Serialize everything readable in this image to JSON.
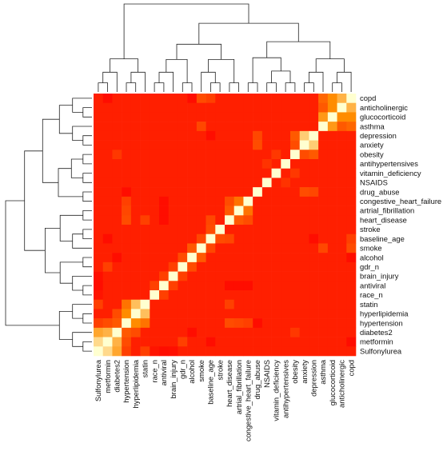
{
  "chart_data": {
    "type": "heatmap",
    "title": "",
    "xlabel": "",
    "ylabel": "",
    "legend": "none",
    "color_scale": {
      "low": "#ff0000",
      "mid": "#ff8c00",
      "high": "#ffffd0"
    },
    "row_labels": [
      "copd",
      "anticholinergic",
      "glucocorticoid",
      "asthma",
      "depression",
      "anxiety",
      "obesity",
      "antihypertensives",
      "vitamin_deficiency",
      "NSAIDS",
      "drug_abuse",
      "congestive_heart_failure",
      "artrial_fibrillation",
      "heart_disease",
      "stroke",
      "baseline_age",
      "smoke",
      "alcohol",
      "gdr_n",
      "brain_injury",
      "antiviral",
      "race_n",
      "statin",
      "hyperlipidemia",
      "hypertension",
      "diabetes2",
      "metformin",
      "Sulfonylurea"
    ],
    "column_labels": [
      "Sulfonylurea",
      "metformin",
      "diabetes2",
      "hypertension",
      "hyperlipidemia",
      "statin",
      "race_n",
      "antiviral",
      "brain_injury",
      "gdr_n",
      "alcohol",
      "smoke",
      "baseline_age",
      "stroke",
      "heart_disease",
      "artrial_fibrillation",
      "congestive_heart_failure",
      "drug_abuse",
      "NSAIDS",
      "vitamin_deficiency",
      "antihypertensives",
      "obesity",
      "anxiety",
      "depression",
      "asthma",
      "glucocorticoid",
      "anticholinergic",
      "copd"
    ],
    "diagonal_value": 1.0,
    "values_note": "approximate relative similarity 0 (red) to 1 (pale yellow)",
    "cells": [
      {
        "a": "Sulfonylurea",
        "b": "metformin",
        "v": 0.85
      },
      {
        "a": "Sulfonylurea",
        "b": "diabetes2",
        "v": 0.65
      },
      {
        "a": "metformin",
        "b": "diabetes2",
        "v": 0.7
      },
      {
        "a": "Sulfonylurea",
        "b": "hypertension",
        "v": 0.25
      },
      {
        "a": "metformin",
        "b": "hypertension",
        "v": 0.3
      },
      {
        "a": "diabetes2",
        "b": "hypertension",
        "v": 0.35
      },
      {
        "a": "diabetes2",
        "b": "hyperlipidemia",
        "v": 0.3
      },
      {
        "a": "hypertension",
        "b": "hyperlipidemia",
        "v": 0.55
      },
      {
        "a": "hypertension",
        "b": "statin",
        "v": 0.45
      },
      {
        "a": "hyperlipidemia",
        "b": "statin",
        "v": 0.75
      },
      {
        "a": "Sulfonylurea",
        "b": "statin",
        "v": 0.25
      },
      {
        "a": "copd",
        "b": "anticholinergic",
        "v": 0.7
      },
      {
        "a": "copd",
        "b": "glucocorticoid",
        "v": 0.55
      },
      {
        "a": "copd",
        "b": "asthma",
        "v": 0.4
      },
      {
        "a": "anticholinergic",
        "b": "glucocorticoid",
        "v": 0.55
      },
      {
        "a": "glucocorticoid",
        "b": "asthma",
        "v": 0.6
      },
      {
        "a": "anticholinergic",
        "b": "asthma",
        "v": 0.35
      },
      {
        "a": "depression",
        "b": "anxiety",
        "v": 0.8
      },
      {
        "a": "depression",
        "b": "obesity",
        "v": 0.35
      },
      {
        "a": "anxiety",
        "b": "obesity",
        "v": 0.3
      },
      {
        "a": "congestive_heart_failure",
        "b": "artrial_fibrillation",
        "v": 0.45
      },
      {
        "a": "congestive_heart_failure",
        "b": "heart_disease",
        "v": 0.3
      },
      {
        "a": "artrial_fibrillation",
        "b": "heart_disease",
        "v": 0.35
      },
      {
        "a": "hypertension",
        "b": "heart_disease",
        "v": 0.3
      },
      {
        "a": "hypertension",
        "b": "artrial_fibrillation",
        "v": 0.28
      },
      {
        "a": "hypertension",
        "b": "congestive_heart_failure",
        "v": 0.25
      },
      {
        "a": "stroke",
        "b": "baseline_age",
        "v": 0.3
      },
      {
        "a": "baseline_age",
        "b": "smoke",
        "v": 0.28
      },
      {
        "a": "smoke",
        "b": "alcohol",
        "v": 0.35
      },
      {
        "a": "alcohol",
        "b": "gdr_n",
        "v": 0.3
      },
      {
        "a": "gdr_n",
        "b": "brain_injury",
        "v": 0.25
      },
      {
        "a": "brain_injury",
        "b": "antiviral",
        "v": 0.25
      },
      {
        "a": "antiviral",
        "b": "race_n",
        "v": 0.25
      },
      {
        "a": "heart_disease",
        "b": "baseline_age",
        "v": 0.28
      },
      {
        "a": "statin",
        "b": "heart_disease",
        "v": 0.25
      },
      {
        "a": "drug_abuse",
        "b": "anxiety",
        "v": 0.3
      },
      {
        "a": "drug_abuse",
        "b": "depression",
        "v": 0.28
      },
      {
        "a": "asthma",
        "b": "smoke",
        "v": 0.28
      },
      {
        "a": "copd",
        "b": "smoke",
        "v": 0.3
      },
      {
        "a": "copd",
        "b": "baseline_age",
        "v": 0.25
      },
      {
        "a": "NSAIDS",
        "b": "antihypertensives",
        "v": 0.2
      },
      {
        "a": "vitamin_deficiency",
        "b": "obesity",
        "v": 0.22
      },
      {
        "a": "metformin",
        "b": "gdr_n",
        "v": 0.25
      },
      {
        "a": "diabetes2",
        "b": "obesity",
        "v": 0.22
      },
      {
        "a": "Sulfonylurea",
        "b": "race_n",
        "v": 0.08
      },
      {
        "a": "Sulfonylurea",
        "b": "antiviral",
        "v": 0.05
      },
      {
        "a": "Sulfonylurea",
        "b": "brain_injury",
        "v": 0.06
      },
      {
        "a": "diabetes2",
        "b": "alcohol",
        "v": 0.05
      },
      {
        "a": "metformin",
        "b": "baseline_age",
        "v": 0.05
      },
      {
        "a": "congestive_heart_failure",
        "b": "antiviral",
        "v": 0.05
      },
      {
        "a": "artrial_fibrillation",
        "b": "antiviral",
        "v": 0.05
      },
      {
        "a": "heart_disease",
        "b": "antiviral",
        "v": 0.05
      },
      {
        "a": "hypertension",
        "b": "drug_abuse",
        "v": 0.05
      },
      {
        "a": "copd",
        "b": "metformin",
        "v": 0.05
      },
      {
        "a": "copd",
        "b": "alcohol",
        "v": 0.05
      },
      {
        "a": "baseline_age",
        "b": "depression",
        "v": 0.05
      }
    ]
  }
}
